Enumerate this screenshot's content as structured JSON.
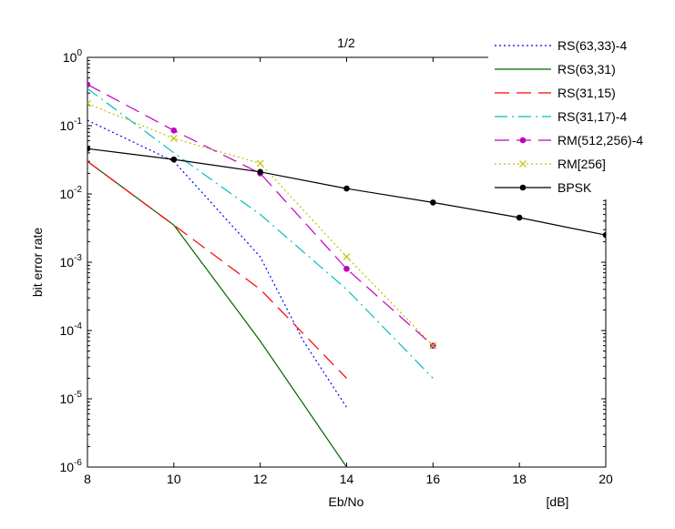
{
  "chart_data": {
    "type": "line",
    "title": "1/2",
    "xlabel": "Eb/No",
    "xunit": "[dB]",
    "ylabel": "bit error rate",
    "xlim": [
      8,
      20
    ],
    "ylim": [
      1e-06,
      1
    ],
    "yscale": "log",
    "grid": false,
    "legend_position": "top-right",
    "x_ticks": [
      8,
      10,
      12,
      14,
      16,
      18,
      20
    ],
    "y_ticks": [
      {
        "base": "10",
        "exp": "0",
        "value": 1
      },
      {
        "base": "10",
        "exp": "-1",
        "value": 0.1
      },
      {
        "base": "10",
        "exp": "-2",
        "value": 0.01
      },
      {
        "base": "10",
        "exp": "-3",
        "value": 0.001
      },
      {
        "base": "10",
        "exp": "-4",
        "value": 0.0001
      },
      {
        "base": "10",
        "exp": "-5",
        "value": 1e-05
      },
      {
        "base": "10",
        "exp": "-6",
        "value": 1e-06
      }
    ],
    "series": [
      {
        "name": "RS(63,33)-4",
        "color": "#0000ff",
        "dash": "dotted",
        "marker": "none",
        "x": [
          8,
          10,
          11,
          12,
          13,
          14
        ],
        "y": [
          0.12,
          0.03,
          0.006,
          0.0012,
          7e-05,
          7.5e-06
        ]
      },
      {
        "name": "RS(63,31)",
        "color": "#006400",
        "dash": "solid",
        "marker": "none",
        "x": [
          8,
          10,
          12,
          14
        ],
        "y": [
          0.03,
          0.0035,
          7e-05,
          1e-06
        ]
      },
      {
        "name": "RS(31,15)",
        "color": "#ff0000",
        "dash": "dashed",
        "marker": "none",
        "x": [
          8,
          10,
          12,
          14
        ],
        "y": [
          0.03,
          0.0035,
          0.0004,
          2e-05
        ]
      },
      {
        "name": "RS(31,17)-4",
        "color": "#00bfbf",
        "dash": "dashdot",
        "marker": "none",
        "x": [
          8,
          10,
          12,
          14,
          16
        ],
        "y": [
          0.35,
          0.04,
          0.005,
          0.0004,
          2e-05
        ]
      },
      {
        "name": "RM(512,256)-4",
        "color": "#bf00bf",
        "dash": "dashed",
        "marker": "dot",
        "x": [
          8,
          10,
          12,
          14,
          16
        ],
        "y": [
          0.4,
          0.085,
          0.02,
          0.0008,
          6e-05
        ]
      },
      {
        "name": "RM[256]",
        "color": "#bfbf00",
        "dash": "dotted",
        "marker": "x",
        "x": [
          8,
          10,
          12,
          14,
          16
        ],
        "y": [
          0.21,
          0.065,
          0.028,
          0.0012,
          6e-05
        ]
      },
      {
        "name": "BPSK",
        "color": "#000000",
        "dash": "solid",
        "marker": "dot",
        "x": [
          8,
          10,
          12,
          14,
          16,
          18,
          20
        ],
        "y": [
          0.046,
          0.032,
          0.021,
          0.012,
          0.0075,
          0.0045,
          0.0025
        ]
      }
    ]
  }
}
